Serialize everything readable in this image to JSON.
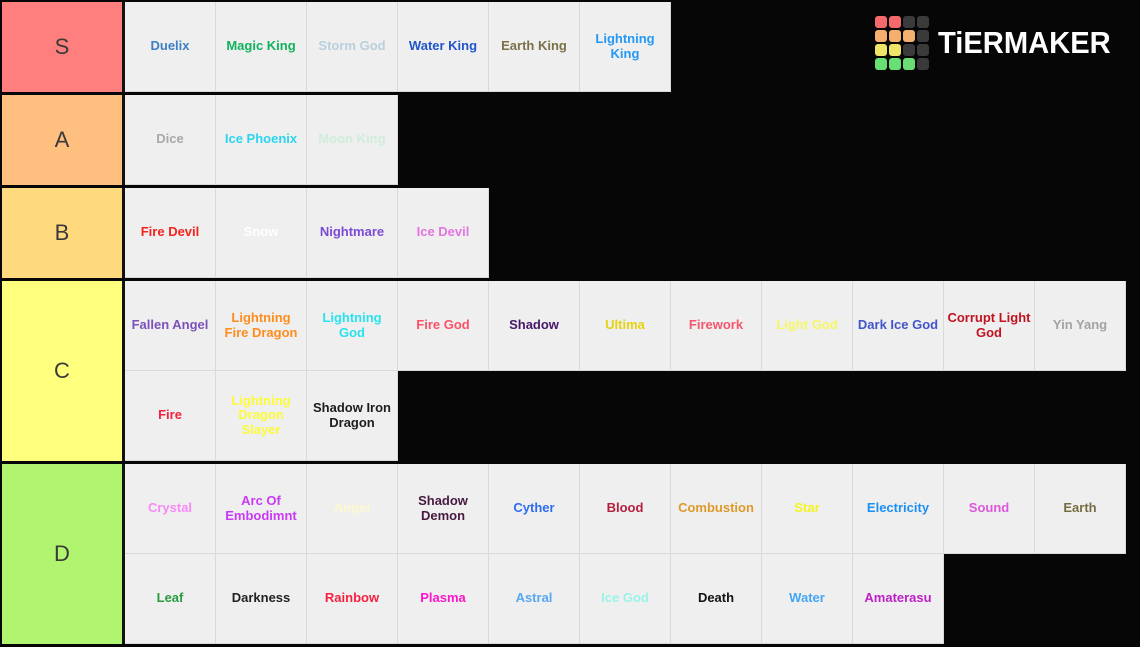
{
  "page": {
    "background": "#060606",
    "cell_background": "#efefef",
    "divider_color": "#d9d9d9"
  },
  "logo": {
    "text": "TiERMAKER",
    "palette": {
      "red": "#f4696b",
      "orange": "#f5b06e",
      "yellow": "#f0e468",
      "green": "#67df72",
      "dark": "#3a3a3a"
    },
    "grid": [
      [
        "red",
        "red",
        "dark",
        "dark"
      ],
      [
        "orange",
        "orange",
        "orange",
        "dark"
      ],
      [
        "yellow",
        "yellow",
        "dark",
        "dark"
      ],
      [
        "green",
        "green",
        "green",
        "dark"
      ]
    ]
  },
  "tiers": [
    {
      "label": "S",
      "color": "#ff7f7e",
      "rows": 1,
      "items": [
        {
          "name": "Duelix",
          "color": "#3e80c4"
        },
        {
          "name": "Magic King",
          "color": "#10b35c"
        },
        {
          "name": "Storm God",
          "color": "#b9cfdd"
        },
        {
          "name": "Water King",
          "color": "#2155cb"
        },
        {
          "name": "Earth King",
          "color": "#7a7148"
        },
        {
          "name": "Lightning King",
          "color": "#2399f5"
        }
      ]
    },
    {
      "label": "A",
      "color": "#ffbf7f",
      "rows": 1,
      "items": [
        {
          "name": "Dice",
          "color": "#a8a8a8"
        },
        {
          "name": "Ice Phoenix",
          "color": "#2cd4f2"
        },
        {
          "name": "Moon King",
          "color": "#cfeeda"
        }
      ]
    },
    {
      "label": "B",
      "color": "#ffd97e",
      "rows": 1,
      "items": [
        {
          "name": "Fire Devil",
          "color": "#f3231c"
        },
        {
          "name": "Snow",
          "color": "#ffffff"
        },
        {
          "name": "Nightmare",
          "color": "#7c4ad7"
        },
        {
          "name": "Ice Devil",
          "color": "#e273e2"
        }
      ]
    },
    {
      "label": "C",
      "color": "#ffff7e",
      "rows": 2,
      "items": [
        {
          "name": "Fallen Angel",
          "color": "#7b52bb"
        },
        {
          "name": "Lightning Fire Dragon",
          "color": "#fe8d1d"
        },
        {
          "name": "Lightning God",
          "color": "#2ae2ef"
        },
        {
          "name": "Fire God",
          "color": "#fd5168"
        },
        {
          "name": "Shadow",
          "color": "#451769"
        },
        {
          "name": "Ultima",
          "color": "#e5d312"
        },
        {
          "name": "Firework",
          "color": "#f4566e"
        },
        {
          "name": "Light God",
          "color": "#f6f666"
        },
        {
          "name": "Dark Ice God",
          "color": "#4355cb"
        },
        {
          "name": "Corrupt Light God",
          "color": "#c01421"
        },
        {
          "name": "Yin Yang",
          "color": "#a2a2a2"
        },
        {
          "name": "Fire",
          "color": "#f22240"
        },
        {
          "name": "Lightning Dragon Slayer",
          "color": "#fbfb3a"
        },
        {
          "name": "Shadow Iron Dragon",
          "color": "#1d1d1d"
        }
      ]
    },
    {
      "label": "D",
      "color": "#b1f470",
      "rows": 2,
      "items": [
        {
          "name": "Crystal",
          "color": "#f78af7"
        },
        {
          "name": "Arc Of Embodimnt",
          "color": "#ca39f5"
        },
        {
          "name": "Angel",
          "color": "#fcf8d0"
        },
        {
          "name": "Shadow Demon",
          "color": "#471a40"
        },
        {
          "name": "Cyther",
          "color": "#2f6cf2"
        },
        {
          "name": "Blood",
          "color": "#b22040"
        },
        {
          "name": "Combustion",
          "color": "#dd9a2b"
        },
        {
          "name": "Star",
          "color": "#f4f420"
        },
        {
          "name": "Electricity",
          "color": "#1e90f5"
        },
        {
          "name": "Sound",
          "color": "#dd58dd"
        },
        {
          "name": "Earth",
          "color": "#776d42"
        },
        {
          "name": "Leaf",
          "color": "#2a9940"
        },
        {
          "name": "Darkness",
          "color": "#232323"
        },
        {
          "name": "Rainbow",
          "color": "#f62040"
        },
        {
          "name": "Plasma",
          "color": "#fd16cb"
        },
        {
          "name": "Astral",
          "color": "#57a7f3"
        },
        {
          "name": "Ice God",
          "color": "#98f4e8"
        },
        {
          "name": "Death",
          "color": "#121212"
        },
        {
          "name": "Water",
          "color": "#44a7f6"
        },
        {
          "name": "Amaterasu",
          "color": "#bd20c6"
        }
      ]
    }
  ]
}
